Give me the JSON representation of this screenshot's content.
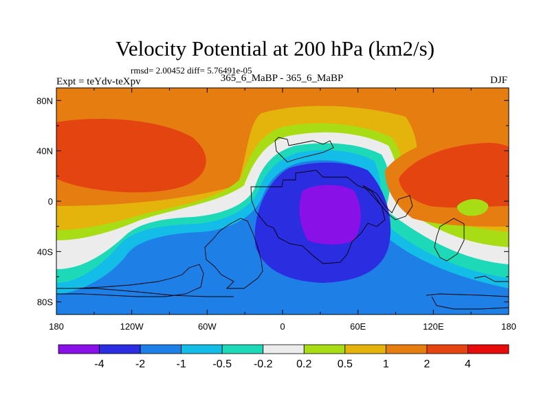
{
  "chart_data": {
    "type": "heatmap",
    "title": "Velocity Potential at 200 hPa (km2/s)",
    "stats_label": "rmsd= 2.00452 diff= 5.76491e-05",
    "experiment_label": "Expt = teYdv-teXpv",
    "center_label": "365_6_MaBP - 365_6_MaBP",
    "season_label": "DJF",
    "x_axis": {
      "range": [
        -180,
        180
      ],
      "ticks": [
        -180,
        -120,
        -60,
        0,
        60,
        120,
        180
      ],
      "tick_labels": [
        "180",
        "120W",
        "60W",
        "0",
        "60E",
        "120E",
        "180"
      ]
    },
    "y_axis": {
      "range": [
        -90,
        90
      ],
      "ticks": [
        80,
        40,
        0,
        -40,
        -80
      ],
      "tick_labels": [
        "80N",
        "40N",
        "0",
        "40S",
        "80S"
      ]
    },
    "colorbar": {
      "levels": [
        "-4",
        "-2",
        "-1",
        "-0.5",
        "-0.2",
        "0.2",
        "0.5",
        "1",
        "2",
        "4"
      ],
      "colors": [
        "#8a10e8",
        "#2b2de0",
        "#1e7fe6",
        "#14bde8",
        "#1ed9b8",
        "#ececec",
        "#a8dc14",
        "#e4b40c",
        "#e57d10",
        "#e44510",
        "#e60c0c"
      ]
    }
  }
}
